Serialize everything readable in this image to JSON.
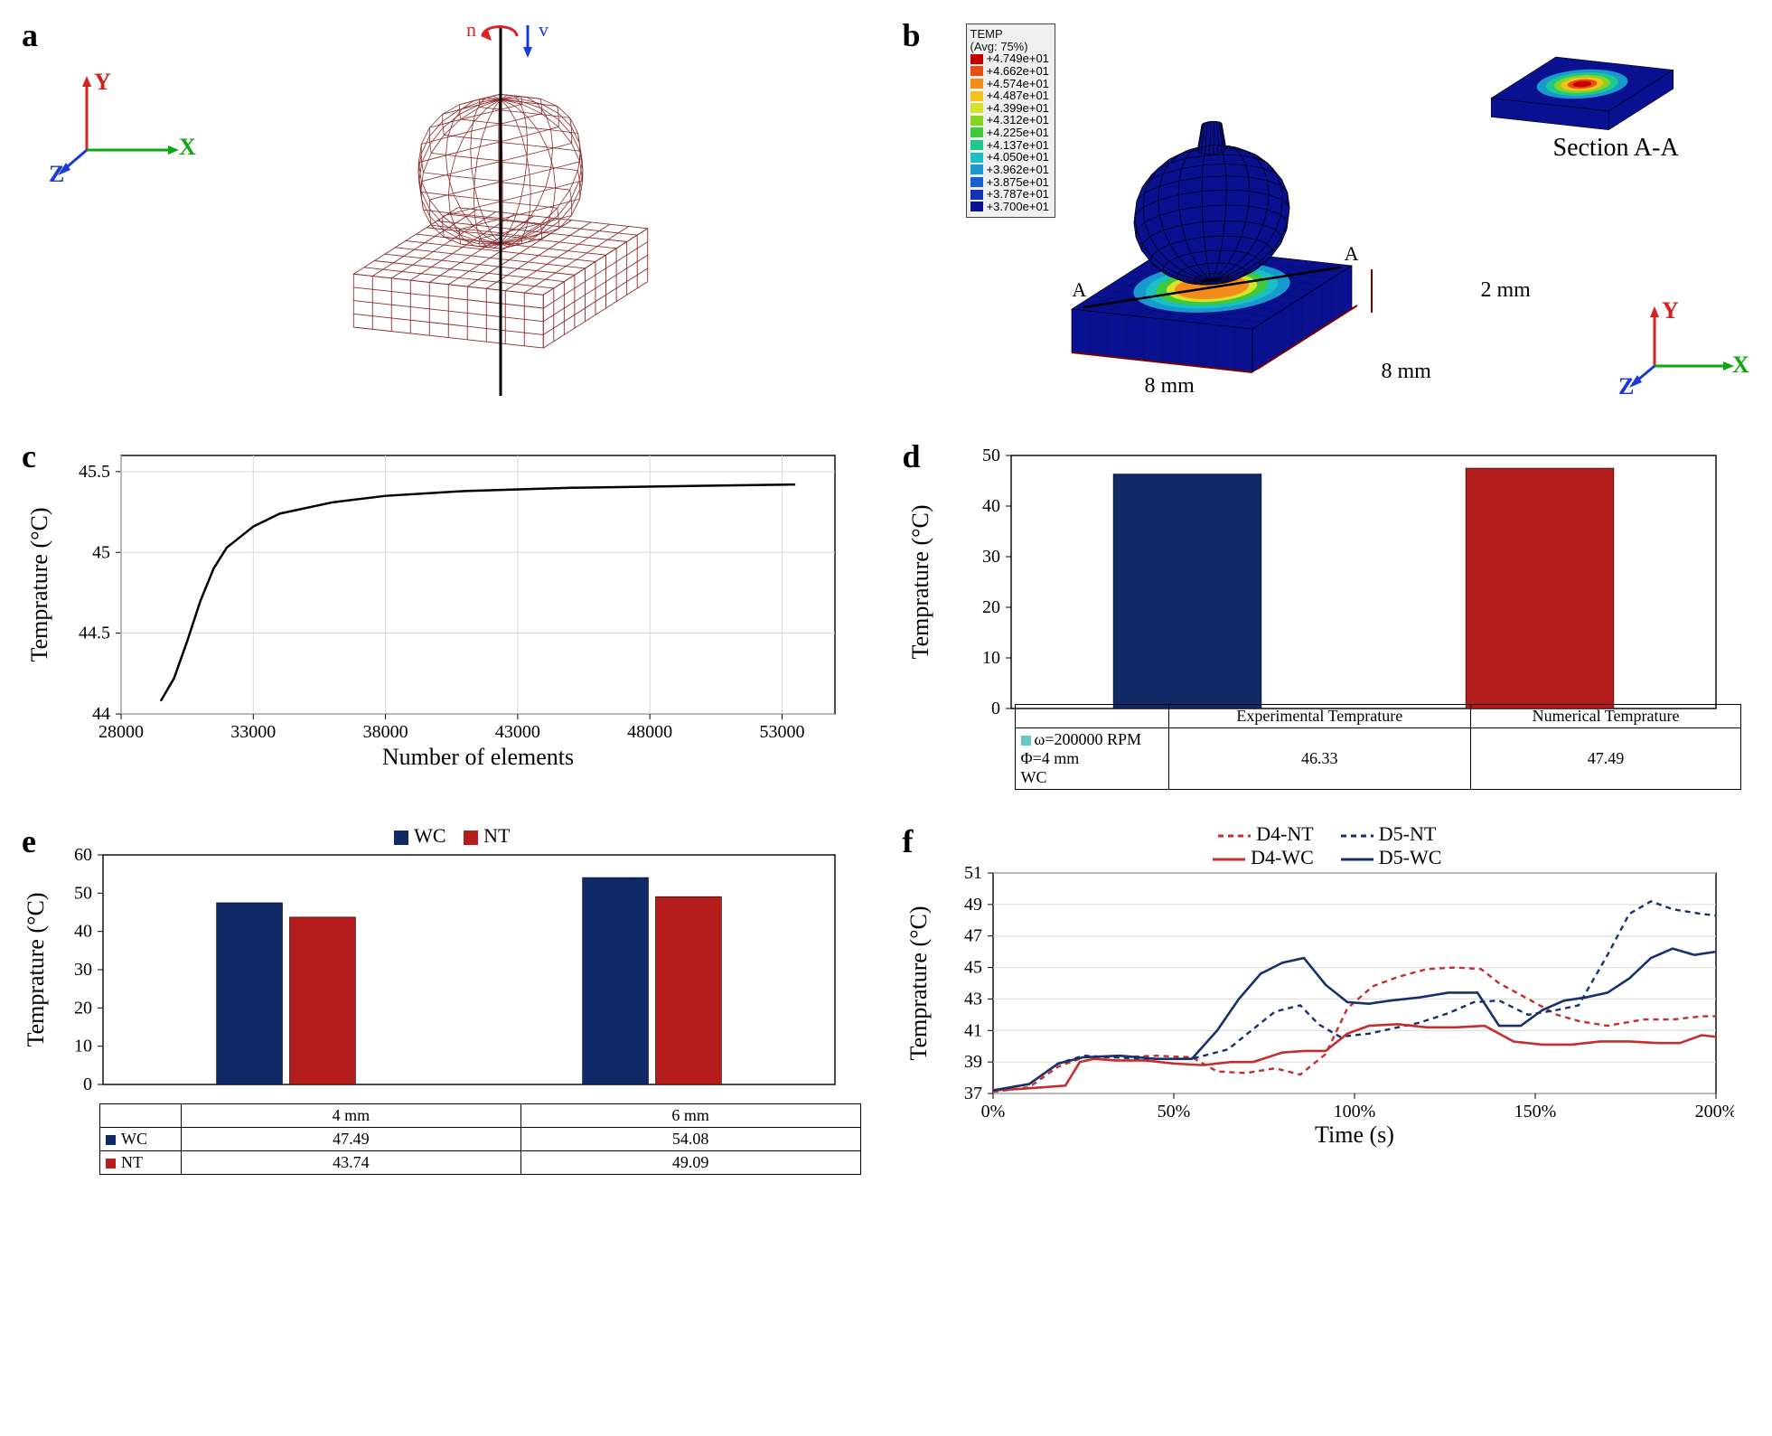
{
  "labels": {
    "a": "a",
    "b": "b",
    "c": "c",
    "d": "d",
    "e": "e",
    "f": "f"
  },
  "triad": {
    "y": "Y",
    "x": "X",
    "z": "Z"
  },
  "panel_a": {
    "wireframe_color": "#8c2b2b",
    "axis_color": "#000",
    "annot_n": "n",
    "annot_v": "v"
  },
  "panel_b": {
    "legend_title": "TEMP\n(Avg: 75%)",
    "legend_values": [
      "+4.749e+01",
      "+4.662e+01",
      "+4.574e+01",
      "+4.487e+01",
      "+4.399e+01",
      "+4.312e+01",
      "+4.225e+01",
      "+4.137e+01",
      "+4.050e+01",
      "+3.962e+01",
      "+3.875e+01",
      "+3.787e+01",
      "+3.700e+01"
    ],
    "legend_colors": [
      "#c40000",
      "#e84d10",
      "#f38c1a",
      "#f4c21e",
      "#d6e22a",
      "#86d41f",
      "#3cc93c",
      "#1fc98d",
      "#18c0c3",
      "#189ad0",
      "#1660d2",
      "#1232b5",
      "#0a1190"
    ],
    "dim_8mm": "8 mm",
    "dim_2mm": "2 mm",
    "section_label": "Section A-A",
    "section_marks": "A"
  },
  "panel_c": {
    "type": "line",
    "xlabel": "Number of elements",
    "ylabel": "Temprature (°C)",
    "xlim": [
      28000,
      55000
    ],
    "xticks": [
      28000,
      33000,
      38000,
      43000,
      48000,
      53000
    ],
    "ylim": [
      44,
      45.6
    ],
    "yticks": [
      44,
      44.5,
      45,
      45.5
    ],
    "line_color": "#000",
    "background_color": "#ffffff",
    "grid_color": "#d9d9d9",
    "points": [
      [
        29500,
        44.08
      ],
      [
        30000,
        44.22
      ],
      [
        30500,
        44.45
      ],
      [
        31000,
        44.7
      ],
      [
        31500,
        44.9
      ],
      [
        32000,
        45.03
      ],
      [
        33000,
        45.16
      ],
      [
        34000,
        45.24
      ],
      [
        36000,
        45.31
      ],
      [
        38000,
        45.35
      ],
      [
        41000,
        45.38
      ],
      [
        45000,
        45.4
      ],
      [
        49000,
        45.41
      ],
      [
        53500,
        45.42
      ]
    ],
    "title_fontsize": 26,
    "label_fontsize": 26,
    "tick_fontsize": 20,
    "line_width": 2.5
  },
  "panel_d": {
    "type": "bar",
    "ylabel": "Temprature (°C)",
    "ylim": [
      0,
      50
    ],
    "yticks": [
      0,
      10,
      20,
      30,
      40,
      50
    ],
    "categories": [
      "Experimental Temprature",
      "Numerical Temprature"
    ],
    "values": [
      46.33,
      47.49
    ],
    "bar_colors": [
      "#0f2a66",
      "#b51d1d"
    ],
    "row_header": "ω=200000  RPM\nΦ=4 mm\nWC",
    "row_header_swatch": "#65c7c7",
    "bar_width": 0.42,
    "background_color": "#ffffff",
    "tick_fontsize": 20,
    "label_fontsize": 26
  },
  "panel_e": {
    "type": "grouped-bar",
    "ylabel": "Temprature (°C)",
    "ylim": [
      0,
      60
    ],
    "yticks": [
      0,
      10,
      20,
      30,
      40,
      50,
      60
    ],
    "groups": [
      "4 mm",
      "6 mm"
    ],
    "series": [
      {
        "name": "WC",
        "color": "#0f2a66",
        "values": [
          47.49,
          54.08
        ]
      },
      {
        "name": "NT",
        "color": "#b51d1d",
        "values": [
          43.74,
          49.09
        ]
      }
    ],
    "bar_width": 0.36,
    "legend_label_wc": "WC",
    "legend_label_nt": "NT",
    "tick_fontsize": 20,
    "label_fontsize": 26
  },
  "panel_f": {
    "type": "line-multi",
    "xlabel": "Time (s)",
    "ylabel": "Temprature (°C)",
    "xlim": [
      0,
      200
    ],
    "xticks": [
      0,
      50,
      100,
      150,
      200
    ],
    "xtick_suffix": "%",
    "ylim": [
      37,
      51
    ],
    "yticks": [
      37,
      39,
      41,
      43,
      45,
      47,
      49,
      51
    ],
    "grid_color": "#d9d9d9",
    "series": [
      {
        "name": "D4-NT",
        "color": "#c52e2e",
        "dash": "6,5",
        "width": 2.4,
        "points": [
          [
            0,
            37.1
          ],
          [
            10,
            37.4
          ],
          [
            18,
            38.7
          ],
          [
            25,
            39.3
          ],
          [
            35,
            39.3
          ],
          [
            45,
            39.4
          ],
          [
            55,
            39.3
          ],
          [
            62,
            38.4
          ],
          [
            70,
            38.3
          ],
          [
            78,
            38.6
          ],
          [
            85,
            38.2
          ],
          [
            92,
            39.5
          ],
          [
            98,
            42.4
          ],
          [
            105,
            43.8
          ],
          [
            112,
            44.4
          ],
          [
            120,
            44.9
          ],
          [
            128,
            45.0
          ],
          [
            135,
            44.9
          ],
          [
            140,
            44.0
          ],
          [
            148,
            43.0
          ],
          [
            156,
            42.0
          ],
          [
            162,
            41.6
          ],
          [
            170,
            41.3
          ],
          [
            180,
            41.7
          ],
          [
            188,
            41.7
          ],
          [
            196,
            41.9
          ],
          [
            200,
            41.9
          ]
        ]
      },
      {
        "name": "D5-NT",
        "color": "#17316e",
        "dash": "6,5",
        "width": 2.4,
        "points": [
          [
            0,
            37.2
          ],
          [
            10,
            37.6
          ],
          [
            18,
            38.9
          ],
          [
            25,
            39.4
          ],
          [
            33,
            39.3
          ],
          [
            42,
            39.2
          ],
          [
            55,
            39.2
          ],
          [
            65,
            39.8
          ],
          [
            72,
            41.1
          ],
          [
            78,
            42.2
          ],
          [
            85,
            42.6
          ],
          [
            90,
            41.4
          ],
          [
            96,
            40.6
          ],
          [
            104,
            40.8
          ],
          [
            110,
            41.1
          ],
          [
            118,
            41.5
          ],
          [
            126,
            42.1
          ],
          [
            133,
            42.8
          ],
          [
            140,
            42.9
          ],
          [
            148,
            42.0
          ],
          [
            156,
            42.3
          ],
          [
            162,
            42.6
          ],
          [
            170,
            45.8
          ],
          [
            176,
            48.4
          ],
          [
            182,
            49.2
          ],
          [
            188,
            48.7
          ],
          [
            196,
            48.4
          ],
          [
            200,
            48.3
          ]
        ]
      },
      {
        "name": "D4-WC",
        "color": "#c52e2e",
        "dash": "",
        "width": 2.6,
        "points": [
          [
            0,
            37.2
          ],
          [
            8,
            37.3
          ],
          [
            14,
            37.4
          ],
          [
            20,
            37.5
          ],
          [
            24,
            39.0
          ],
          [
            28,
            39.2
          ],
          [
            34,
            39.1
          ],
          [
            42,
            39.1
          ],
          [
            50,
            38.9
          ],
          [
            58,
            38.8
          ],
          [
            66,
            39.0
          ],
          [
            72,
            39.0
          ],
          [
            80,
            39.6
          ],
          [
            86,
            39.7
          ],
          [
            92,
            39.7
          ],
          [
            98,
            40.8
          ],
          [
            104,
            41.3
          ],
          [
            112,
            41.4
          ],
          [
            120,
            41.2
          ],
          [
            128,
            41.2
          ],
          [
            136,
            41.3
          ],
          [
            144,
            40.3
          ],
          [
            152,
            40.1
          ],
          [
            160,
            40.1
          ],
          [
            168,
            40.3
          ],
          [
            176,
            40.3
          ],
          [
            184,
            40.2
          ],
          [
            190,
            40.2
          ],
          [
            196,
            40.7
          ],
          [
            200,
            40.6
          ]
        ]
      },
      {
        "name": "D5-WC",
        "color": "#17316e",
        "dash": "",
        "width": 2.6,
        "points": [
          [
            0,
            37.2
          ],
          [
            10,
            37.6
          ],
          [
            18,
            38.9
          ],
          [
            25,
            39.3
          ],
          [
            35,
            39.4
          ],
          [
            45,
            39.2
          ],
          [
            55,
            39.2
          ],
          [
            62,
            41.0
          ],
          [
            68,
            43.0
          ],
          [
            74,
            44.6
          ],
          [
            80,
            45.3
          ],
          [
            86,
            45.6
          ],
          [
            92,
            43.9
          ],
          [
            98,
            42.8
          ],
          [
            104,
            42.7
          ],
          [
            110,
            42.9
          ],
          [
            118,
            43.1
          ],
          [
            126,
            43.4
          ],
          [
            134,
            43.4
          ],
          [
            140,
            41.3
          ],
          [
            146,
            41.3
          ],
          [
            152,
            42.3
          ],
          [
            158,
            42.9
          ],
          [
            164,
            43.1
          ],
          [
            170,
            43.4
          ],
          [
            176,
            44.3
          ],
          [
            182,
            45.6
          ],
          [
            188,
            46.2
          ],
          [
            194,
            45.8
          ],
          [
            200,
            46.0
          ]
        ]
      }
    ],
    "tick_fontsize": 20,
    "label_fontsize": 26
  }
}
